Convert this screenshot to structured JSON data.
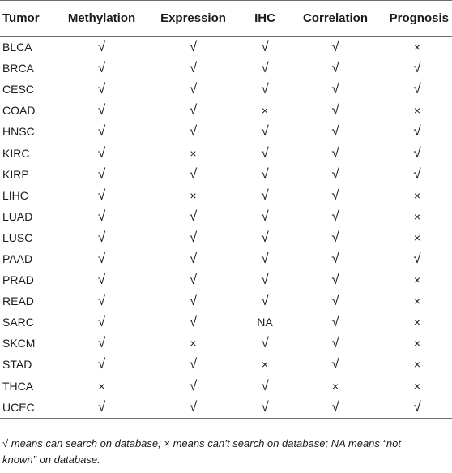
{
  "table": {
    "headers": [
      "Tumor",
      "Methylation",
      "Expression",
      "IHC",
      "Correlation",
      "Prognosis"
    ],
    "rows": [
      [
        "BLCA",
        "√",
        "√",
        "√",
        "√",
        "×"
      ],
      [
        "BRCA",
        "√",
        "√",
        "√",
        "√",
        "√"
      ],
      [
        "CESC",
        "√",
        "√",
        "√",
        "√",
        "√"
      ],
      [
        "COAD",
        "√",
        "√",
        "×",
        "√",
        "×"
      ],
      [
        "HNSC",
        "√",
        "√",
        "√",
        "√",
        "√"
      ],
      [
        "KIRC",
        "√",
        "×",
        "√",
        "√",
        "√"
      ],
      [
        "KIRP",
        "√",
        "√",
        "√",
        "√",
        "√"
      ],
      [
        "LIHC",
        "√",
        "×",
        "√",
        "√",
        "×"
      ],
      [
        "LUAD",
        "√",
        "√",
        "√",
        "√",
        "×"
      ],
      [
        "LUSC",
        "√",
        "√",
        "√",
        "√",
        "×"
      ],
      [
        "PAAD",
        "√",
        "√",
        "√",
        "√",
        "√"
      ],
      [
        "PRAD",
        "√",
        "√",
        "√",
        "√",
        "×"
      ],
      [
        "READ",
        "√",
        "√",
        "√",
        "√",
        "×"
      ],
      [
        "SARC",
        "√",
        "√",
        "NA",
        "√",
        "×"
      ],
      [
        "SKCM",
        "√",
        "×",
        "√",
        "√",
        "×"
      ],
      [
        "STAD",
        "√",
        "√",
        "×",
        "√",
        "×"
      ],
      [
        "THCA",
        "×",
        "√",
        "√",
        "×",
        "×"
      ],
      [
        "UCEC",
        "√",
        "√",
        "√",
        "√",
        "√"
      ]
    ]
  },
  "footnote": {
    "line1": "√ means can search on database; × means can’t search on database; NA means “not",
    "line2": "known” on database."
  }
}
